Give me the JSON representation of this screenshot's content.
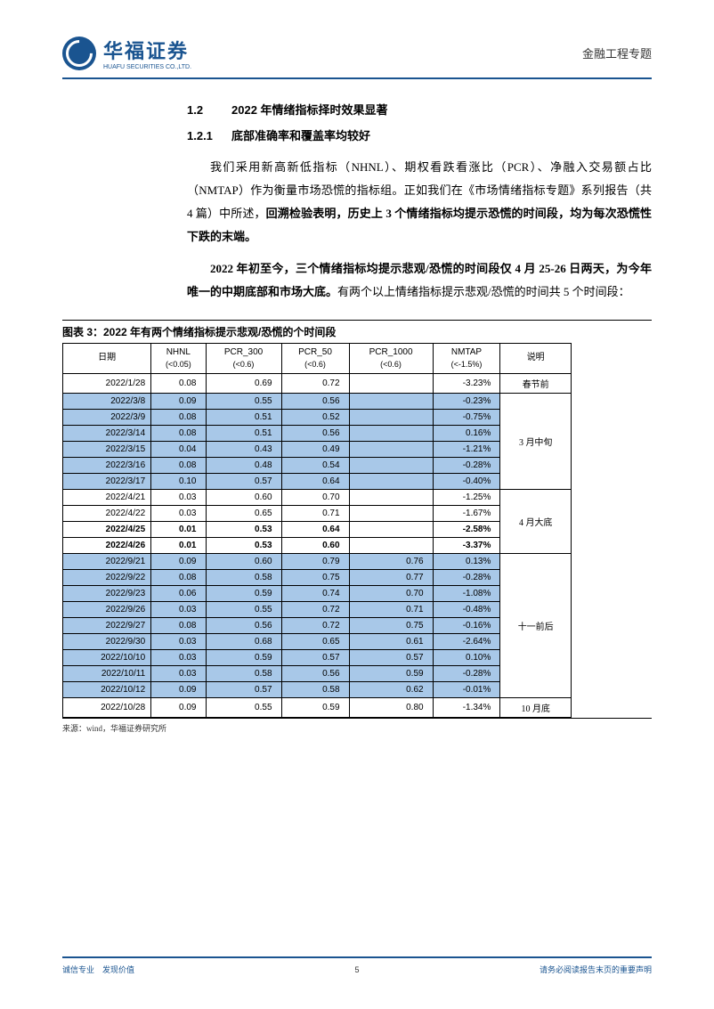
{
  "header": {
    "logo_cn": "华福证券",
    "logo_en": "HUAFU SECURITIES CO.,LTD.",
    "topic": "金融工程专题"
  },
  "section": {
    "num": "1.2",
    "title": "2022 年情绪指标择时效果显著"
  },
  "subsection": {
    "num": "1.2.1",
    "title": "底部准确率和覆盖率均较好"
  },
  "paragraphs": {
    "p1_a": "我们采用新高新低指标（NHNL）、期权看跌看涨比（PCR）、净融入交易额占比（NMTAP）作为衡量市场恐慌的指标组。正如我们在《市场情绪指标专题》系列报告（共 4 篇）中所述，",
    "p1_b": "回溯检验表明，历史上 3 个情绪指标均提示恐慌的时间段，均为每次恐慌性下跌的末端。",
    "p2_a": "2022 年初至今，三个情绪指标均提示悲观/恐慌的时间段仅 4 月 25-26 日两天，为今年唯一的中期底部和市场大底。",
    "p2_b": "有两个以上情绪指标提示悲观/恐慌的时间共 5 个时间段："
  },
  "table": {
    "caption": "图表 3：2022 年有两个情绪指标提示悲观/恐慌的个时间段",
    "source": "来源：wind，华福证券研究所",
    "headers": {
      "date": "日期",
      "nhnl": "NHNL",
      "nhnl_sub": "(<0.05)",
      "pcr300": "PCR_300",
      "pcr300_sub": "(<0.6)",
      "pcr50": "PCR_50",
      "pcr50_sub": "(<0.6)",
      "pcr1000": "PCR_1000",
      "pcr1000_sub": "(<0.6)",
      "nmtap": "NMTAP",
      "nmtap_sub": "(<-1.5%)",
      "desc": "说明"
    },
    "groups": [
      {
        "desc": "春节前",
        "shade": false,
        "rows": [
          {
            "date": "2022/1/28",
            "nhnl": "0.08",
            "pcr300": "0.69",
            "pcr50": "0.72",
            "pcr1000": "",
            "nmtap": "-3.23%",
            "bold": false
          }
        ]
      },
      {
        "desc": "3 月中旬",
        "shade": true,
        "rows": [
          {
            "date": "2022/3/8",
            "nhnl": "0.09",
            "pcr300": "0.55",
            "pcr50": "0.56",
            "pcr1000": "",
            "nmtap": "-0.23%",
            "bold": false
          },
          {
            "date": "2022/3/9",
            "nhnl": "0.08",
            "pcr300": "0.51",
            "pcr50": "0.52",
            "pcr1000": "",
            "nmtap": "-0.75%",
            "bold": false
          },
          {
            "date": "2022/3/14",
            "nhnl": "0.08",
            "pcr300": "0.51",
            "pcr50": "0.56",
            "pcr1000": "",
            "nmtap": "0.16%",
            "bold": false
          },
          {
            "date": "2022/3/15",
            "nhnl": "0.04",
            "pcr300": "0.43",
            "pcr50": "0.49",
            "pcr1000": "",
            "nmtap": "-1.21%",
            "bold": false
          },
          {
            "date": "2022/3/16",
            "nhnl": "0.08",
            "pcr300": "0.48",
            "pcr50": "0.54",
            "pcr1000": "",
            "nmtap": "-0.28%",
            "bold": false
          },
          {
            "date": "2022/3/17",
            "nhnl": "0.10",
            "pcr300": "0.57",
            "pcr50": "0.64",
            "pcr1000": "",
            "nmtap": "-0.40%",
            "bold": false
          }
        ]
      },
      {
        "desc": "4 月大底",
        "shade": false,
        "rows": [
          {
            "date": "2022/4/21",
            "nhnl": "0.03",
            "pcr300": "0.60",
            "pcr50": "0.70",
            "pcr1000": "",
            "nmtap": "-1.25%",
            "bold": false
          },
          {
            "date": "2022/4/22",
            "nhnl": "0.03",
            "pcr300": "0.65",
            "pcr50": "0.71",
            "pcr1000": "",
            "nmtap": "-1.67%",
            "bold": false
          },
          {
            "date": "2022/4/25",
            "nhnl": "0.01",
            "pcr300": "0.53",
            "pcr50": "0.64",
            "pcr1000": "",
            "nmtap": "-2.58%",
            "bold": true
          },
          {
            "date": "2022/4/26",
            "nhnl": "0.01",
            "pcr300": "0.53",
            "pcr50": "0.60",
            "pcr1000": "",
            "nmtap": "-3.37%",
            "bold": true
          }
        ]
      },
      {
        "desc": "十一前后",
        "shade": true,
        "rows": [
          {
            "date": "2022/9/21",
            "nhnl": "0.09",
            "pcr300": "0.60",
            "pcr50": "0.79",
            "pcr1000": "0.76",
            "nmtap": "0.13%",
            "bold": false
          },
          {
            "date": "2022/9/22",
            "nhnl": "0.08",
            "pcr300": "0.58",
            "pcr50": "0.75",
            "pcr1000": "0.77",
            "nmtap": "-0.28%",
            "bold": false
          },
          {
            "date": "2022/9/23",
            "nhnl": "0.06",
            "pcr300": "0.59",
            "pcr50": "0.74",
            "pcr1000": "0.70",
            "nmtap": "-1.08%",
            "bold": false
          },
          {
            "date": "2022/9/26",
            "nhnl": "0.03",
            "pcr300": "0.55",
            "pcr50": "0.72",
            "pcr1000": "0.71",
            "nmtap": "-0.48%",
            "bold": false
          },
          {
            "date": "2022/9/27",
            "nhnl": "0.08",
            "pcr300": "0.56",
            "pcr50": "0.72",
            "pcr1000": "0.75",
            "nmtap": "-0.16%",
            "bold": false
          },
          {
            "date": "2022/9/30",
            "nhnl": "0.03",
            "pcr300": "0.68",
            "pcr50": "0.65",
            "pcr1000": "0.61",
            "nmtap": "-2.64%",
            "bold": false
          },
          {
            "date": "2022/10/10",
            "nhnl": "0.03",
            "pcr300": "0.59",
            "pcr50": "0.57",
            "pcr1000": "0.57",
            "nmtap": "0.10%",
            "bold": false
          },
          {
            "date": "2022/10/11",
            "nhnl": "0.03",
            "pcr300": "0.58",
            "pcr50": "0.56",
            "pcr1000": "0.59",
            "nmtap": "-0.28%",
            "bold": false
          },
          {
            "date": "2022/10/12",
            "nhnl": "0.09",
            "pcr300": "0.57",
            "pcr50": "0.58",
            "pcr1000": "0.62",
            "nmtap": "-0.01%",
            "bold": false
          }
        ]
      },
      {
        "desc": "10 月底",
        "shade": false,
        "rows": [
          {
            "date": "2022/10/28",
            "nhnl": "0.09",
            "pcr300": "0.55",
            "pcr50": "0.59",
            "pcr1000": "0.80",
            "nmtap": "-1.34%",
            "bold": false
          }
        ]
      }
    ]
  },
  "footer": {
    "left": "诚信专业　发现价值",
    "page": "5",
    "right": "请务必阅读报告末页的重要声明"
  },
  "colors": {
    "brand": "#1a5490",
    "shade": "#a8c8e8",
    "text": "#333333"
  }
}
